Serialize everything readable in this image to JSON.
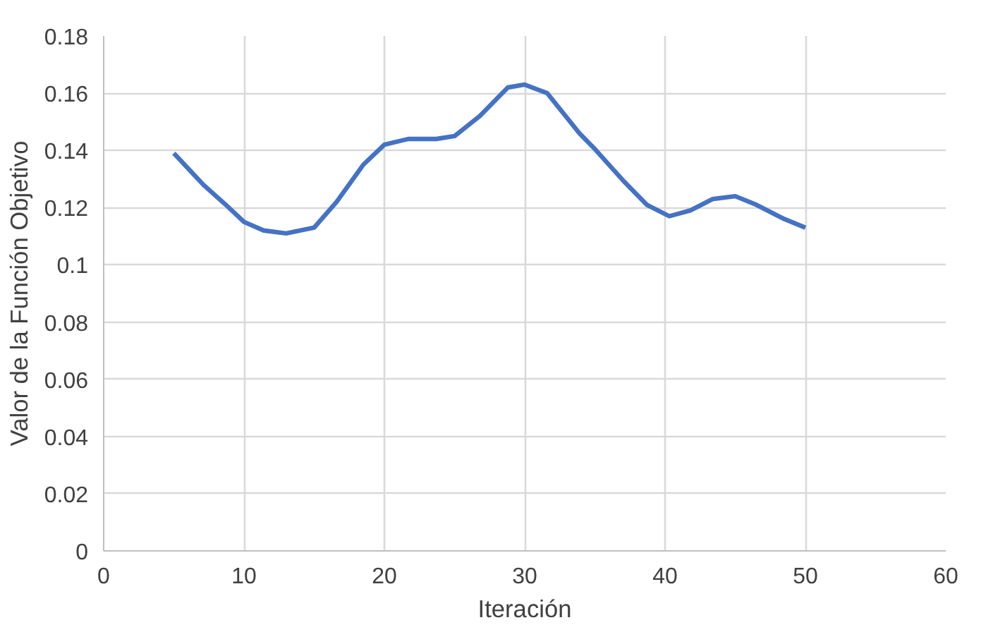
{
  "chart_data": {
    "type": "line",
    "xlabel": "Iteración",
    "ylabel": "Valor de la Función Objetivo",
    "x": [
      5,
      7.1,
      8.7,
      10,
      11.4,
      13,
      15,
      16.6,
      18.5,
      20,
      21.7,
      23.7,
      25,
      26.8,
      28.8,
      30,
      31.6,
      33.9,
      34.9,
      37.1,
      38.7,
      40.3,
      41.8,
      43.4,
      45,
      46.5,
      48.5,
      50
    ],
    "series": [
      {
        "color": "#4472c4",
        "values": [
          0.139,
          0.128,
          0.121,
          0.115,
          0.112,
          0.111,
          0.113,
          0.122,
          0.135,
          0.142,
          0.144,
          0.144,
          0.145,
          0.152,
          0.162,
          0.163,
          0.16,
          0.146,
          0.141,
          0.129,
          0.121,
          0.117,
          0.119,
          0.123,
          0.124,
          0.121,
          0.116,
          0.113
        ]
      }
    ],
    "xlim": [
      0,
      60
    ],
    "xticks": [
      0,
      10,
      20,
      30,
      40,
      50,
      60
    ],
    "ylim": [
      0,
      0.18
    ],
    "yticks": [
      0,
      {
        "value": 0.02,
        "label": "0.02"
      },
      {
        "value": 0.04,
        "label": "0.04"
      },
      {
        "value": 0.06,
        "label": "0.06"
      },
      {
        "value": 0.08,
        "label": "0.08"
      },
      {
        "value": 0.1,
        "label": "0.1"
      },
      {
        "value": 0.12,
        "label": "0.12"
      },
      {
        "value": 0.14,
        "label": "0.14"
      },
      {
        "value": 0.16,
        "label": "0.16"
      },
      {
        "value": 0.18,
        "label": "0.18"
      }
    ],
    "grid": true,
    "marker": "none",
    "line_style": "solid"
  }
}
